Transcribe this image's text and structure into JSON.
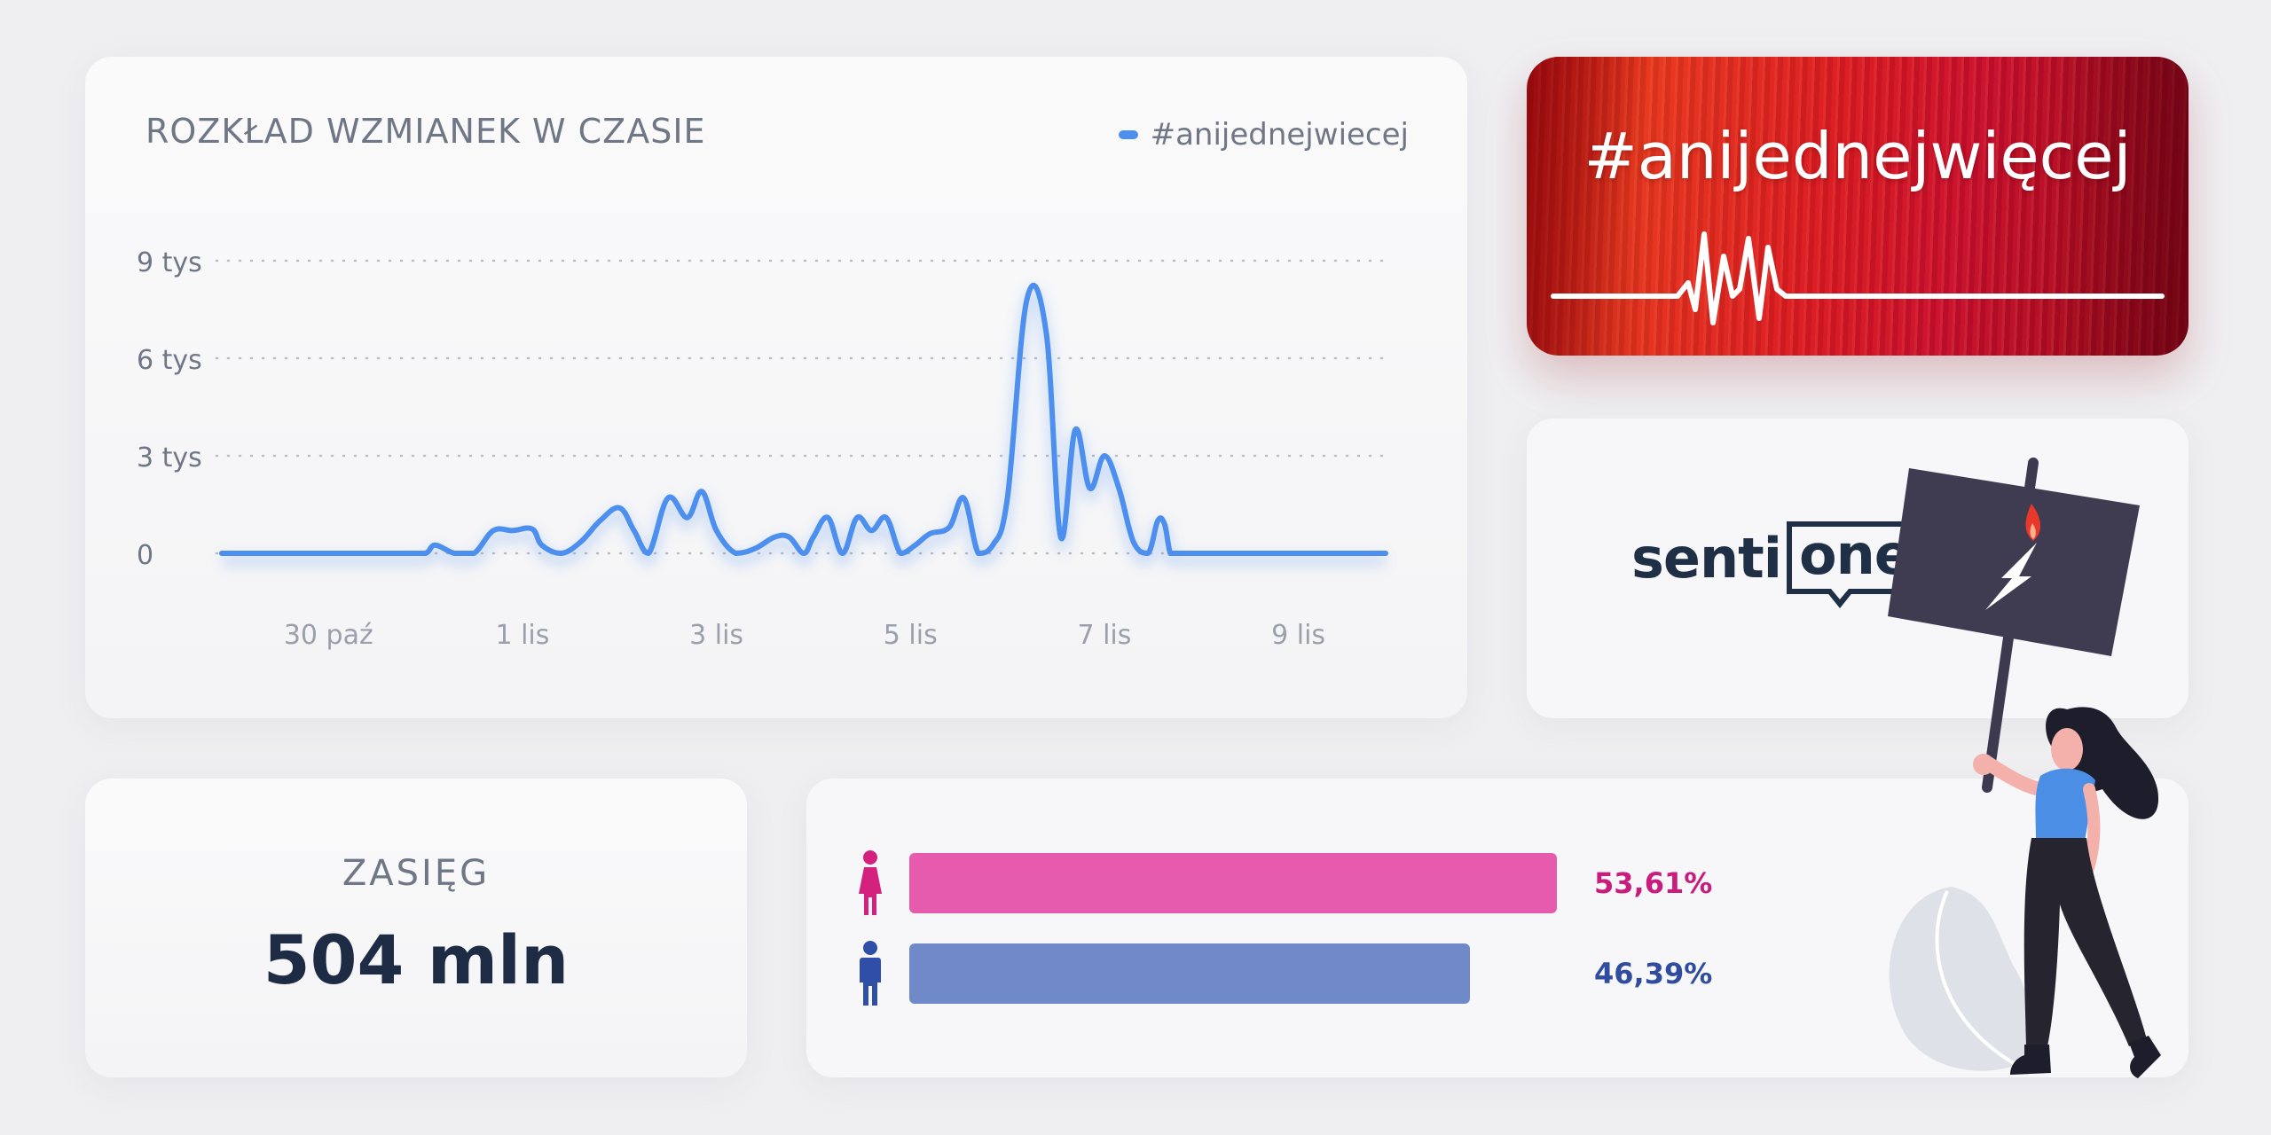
{
  "chart_card": {
    "title": "ROZKŁAD WZMIANEK W CZASIE",
    "legend_label": "#anijednejwiecej"
  },
  "chart_data": {
    "type": "line",
    "title": "ROZKŁAD WZMIANEK W CZASIE",
    "xlabel": "",
    "ylabel": "",
    "y_tick_labels": [
      "0",
      "3 tys",
      "6 tys",
      "9 tys"
    ],
    "y_ticks": [
      0,
      3000,
      6000,
      9000
    ],
    "ylim": [
      0,
      9000
    ],
    "x_tick_labels": [
      "30 paź",
      "1 lis",
      "3 lis",
      "5 lis",
      "7 lis",
      "9 lis"
    ],
    "x_ticks": [
      0,
      2,
      4,
      6,
      8,
      10
    ],
    "xlim": [
      -1.1,
      10.9
    ],
    "grid": "horizontal-dotted",
    "legend_position": "top-right",
    "series": [
      {
        "name": "#anijednejwiecej",
        "color": "#4d8fef",
        "x": [
          -1.1,
          -0.6,
          -0.2,
          0.3,
          0.8,
          1.0,
          1.1,
          1.3,
          1.5,
          1.7,
          1.9,
          2.1,
          2.2,
          2.4,
          2.6,
          2.8,
          3.0,
          3.15,
          3.3,
          3.5,
          3.7,
          3.85,
          4.0,
          4.2,
          4.4,
          4.6,
          4.75,
          4.9,
          5.0,
          5.15,
          5.3,
          5.45,
          5.6,
          5.75,
          5.9,
          6.05,
          6.2,
          6.4,
          6.55,
          6.7,
          6.85,
          7.0,
          7.2,
          7.4,
          7.55,
          7.7,
          7.85,
          8.0,
          8.15,
          8.3,
          8.45,
          8.55,
          8.62,
          8.68,
          8.75,
          8.85,
          8.95,
          9.05,
          9.15,
          9.3,
          9.45,
          9.55,
          9.65,
          9.75,
          9.85,
          9.95,
          10.05,
          10.15,
          10.25,
          10.35,
          10.45,
          10.55,
          10.65,
          10.75,
          10.9
        ],
        "y": [
          0,
          0,
          0,
          0,
          0,
          0,
          250,
          0,
          0,
          700,
          700,
          750,
          250,
          0,
          350,
          1000,
          1400,
          700,
          0,
          1700,
          1100,
          1900,
          700,
          0,
          150,
          500,
          500,
          0,
          500,
          1100,
          0,
          1100,
          700,
          1100,
          0,
          250,
          600,
          800,
          1700,
          0,
          250,
          1700,
          7800,
          6800,
          500,
          3800,
          2000,
          3000,
          2000,
          350,
          0,
          1000,
          900,
          0,
          0,
          0,
          0,
          0,
          0,
          0,
          0,
          0,
          0,
          0,
          0,
          0,
          0,
          0,
          0,
          0,
          0,
          0,
          0,
          0,
          0
        ]
      }
    ]
  },
  "hashtag_card": {
    "text": "#anijednejwięcej"
  },
  "logo": {
    "part1": "senti",
    "part2": "one"
  },
  "reach": {
    "label": "ZASIĘG",
    "value": "504 mln"
  },
  "gender": {
    "female": {
      "value": "53,61%",
      "fraction": 0.5361,
      "color": "#e65bae",
      "text_color": "#c81d7c"
    },
    "male": {
      "value": "46,39%",
      "fraction": 0.4639,
      "color": "#7089c9",
      "text_color": "#2f4c9e"
    }
  }
}
